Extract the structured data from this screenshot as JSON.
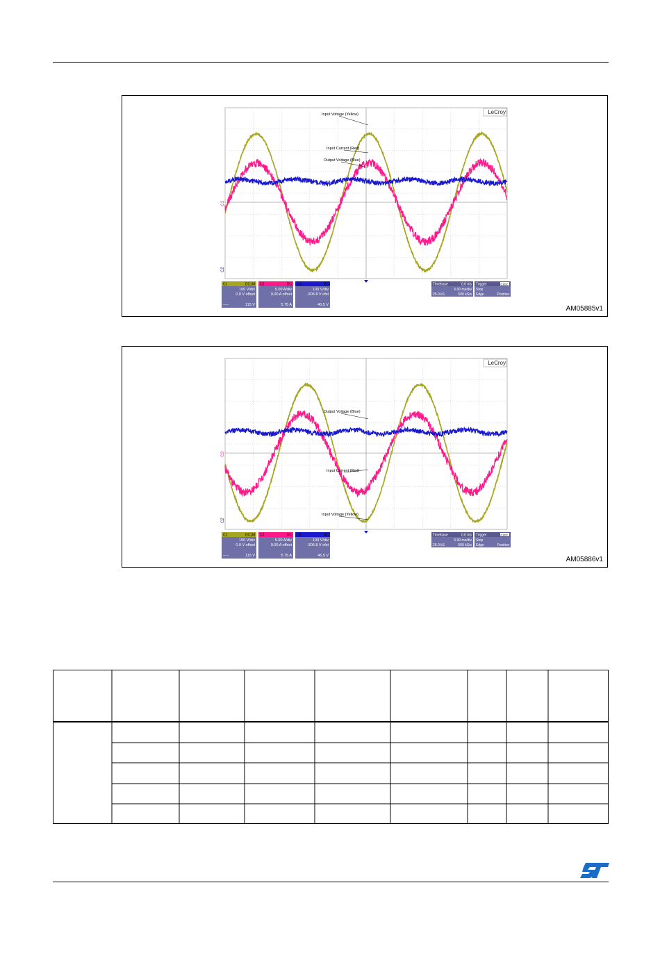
{
  "figures": [
    {
      "figure_id": "AM05885v1",
      "brand": "LeCroy",
      "annotations": [
        "Input Voltage (Yellow)",
        "Input Current (Red)",
        "Output Voltage (Blue)"
      ],
      "channel_markers": [
        "C3",
        "C2"
      ],
      "channels": [
        {
          "name": "C1",
          "tag": "DC1M",
          "line1": "100 V/div",
          "line2": "0.0 V offset",
          "foot_l": "-----",
          "foot_r": "115 V",
          "color": "#a5a520"
        },
        {
          "name": "C2",
          "tag": "DC",
          "line1": "5.00 A/div",
          "line2": "0.00 A offset",
          "foot_l": "",
          "foot_r": "5.75 A",
          "color": "#ff1a8c"
        },
        {
          "name": "C3",
          "tag": "DC",
          "line1": "100 V/div",
          "line2": "-306.8 V ofst",
          "foot_l": "",
          "foot_r": "46.5 V",
          "color": "#1a1acc"
        }
      ],
      "timebase": {
        "label": "Timebase",
        "offset": "0.0 ms",
        "div": "5.00 ms/div",
        "samples": "25.0 kS",
        "rate": "500 kS/s"
      },
      "trigger": {
        "label": "Trigger",
        "tag": "C1DC",
        "mode": "Stop",
        "type": "Edge",
        "slope": "Positive"
      }
    },
    {
      "figure_id": "AM05886v1",
      "brand": "LeCroy",
      "annotations": [
        "Output Voltage (Blue)",
        "Input Current (Red)",
        "Input Voltage (Yellow)"
      ],
      "channel_markers": [
        "C3",
        "C2"
      ],
      "channels": [
        {
          "name": "C1",
          "tag": "DC1M",
          "line1": "100 V/div",
          "line2": "0.0 V offset",
          "foot_l": "-----",
          "foot_r": "115 V",
          "color": "#a5a520"
        },
        {
          "name": "C2",
          "tag": "DC",
          "line1": "5.00 A/div",
          "line2": "0.00 A offset",
          "foot_l": "",
          "foot_r": "5.75 A",
          "color": "#ff1a8c"
        },
        {
          "name": "C3",
          "tag": "DC",
          "line1": "100 V/div",
          "line2": "-306.8 V ofst",
          "foot_l": "",
          "foot_r": "46.5 V",
          "color": "#1a1acc"
        }
      ],
      "timebase": {
        "label": "Timebase",
        "offset": "0.0 ms",
        "div": "5.00 ms/div",
        "samples": "25.0 kS",
        "rate": "500 kS/s"
      },
      "trigger": {
        "label": "Trigger",
        "tag": "C1DC",
        "mode": "Stop",
        "type": "Edge",
        "slope": "Positive"
      }
    }
  ],
  "table": {
    "columns": 9,
    "header_rows": 1,
    "body_rows": 5
  },
  "logo": "ST",
  "colors": {
    "yellow_trace": "#a5a520",
    "red_trace": "#ff1a8c",
    "blue_trace": "#1a1acc",
    "panel_bg": "#7070a8",
    "grid": "#c8c8c8"
  }
}
